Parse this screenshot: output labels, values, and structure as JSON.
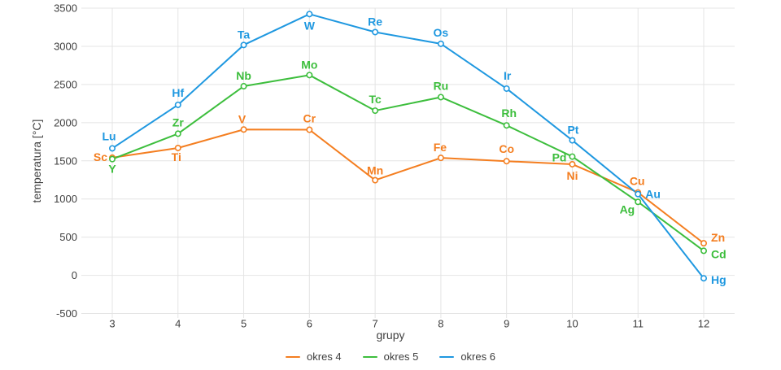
{
  "page": {
    "background": "#ffffff"
  },
  "chart_data": {
    "type": "line",
    "title": "",
    "xlabel": "grupy",
    "ylabel": "temperatura [°C]",
    "x_ticks": [
      3,
      4,
      5,
      6,
      7,
      8,
      9,
      10,
      11,
      12
    ],
    "y_ticks": [
      3500,
      3000,
      2500,
      2000,
      1500,
      1000,
      500,
      0,
      -500
    ],
    "xlim": [
      3,
      12
    ],
    "ylim": [
      -500,
      3500
    ],
    "grid": true,
    "legend_position": "bottom",
    "colors": {
      "grid": "#e4e4e4",
      "tick_text": "#3f3f3f",
      "axis_text": "#3f3f3f"
    },
    "series": [
      {
        "name": "okres 4",
        "color": "#f47e20",
        "points": [
          {
            "label": "Sc",
            "x": 3,
            "y": 1541,
            "anchor": "end",
            "dx": -6,
            "dy": 4
          },
          {
            "label": "Ti",
            "x": 4,
            "y": 1668,
            "anchor": "middle",
            "dx": -2,
            "dy": 16
          },
          {
            "label": "V",
            "x": 5,
            "y": 1910,
            "anchor": "middle",
            "dx": -2,
            "dy": -8
          },
          {
            "label": "Cr",
            "x": 6,
            "y": 1907,
            "anchor": "middle",
            "dx": 0,
            "dy": -9
          },
          {
            "label": "Mn",
            "x": 7,
            "y": 1246,
            "anchor": "middle",
            "dx": 0,
            "dy": -7
          },
          {
            "label": "Fe",
            "x": 8,
            "y": 1538,
            "anchor": "middle",
            "dx": -1,
            "dy": -8
          },
          {
            "label": "Co",
            "x": 9,
            "y": 1495,
            "anchor": "middle",
            "dx": 0,
            "dy": -10
          },
          {
            "label": "Ni",
            "x": 10,
            "y": 1455,
            "anchor": "middle",
            "dx": 0,
            "dy": 19
          },
          {
            "label": "Cu",
            "x": 11,
            "y": 1085,
            "anchor": "middle",
            "dx": -1,
            "dy": -9
          },
          {
            "label": "Zn",
            "x": 12,
            "y": 420,
            "anchor": "start",
            "dx": 9,
            "dy": -2
          }
        ]
      },
      {
        "name": "okres 5",
        "color": "#3dbe3d",
        "points": [
          {
            "label": "Y",
            "x": 3,
            "y": 1522,
            "anchor": "middle",
            "dx": 0,
            "dy": 17
          },
          {
            "label": "Zr",
            "x": 4,
            "y": 1855,
            "anchor": "middle",
            "dx": 0,
            "dy": -9
          },
          {
            "label": "Nb",
            "x": 5,
            "y": 2477,
            "anchor": "middle",
            "dx": 0,
            "dy": -8
          },
          {
            "label": "Mo",
            "x": 6,
            "y": 2623,
            "anchor": "middle",
            "dx": 0,
            "dy": -8
          },
          {
            "label": "Tc",
            "x": 7,
            "y": 2157,
            "anchor": "middle",
            "dx": 0,
            "dy": -9
          },
          {
            "label": "Ru",
            "x": 8,
            "y": 2334,
            "anchor": "middle",
            "dx": 0,
            "dy": -9
          },
          {
            "label": "Rh",
            "x": 9,
            "y": 1964,
            "anchor": "middle",
            "dx": 3,
            "dy": -10
          },
          {
            "label": "Pd",
            "x": 10,
            "y": 1555,
            "anchor": "end",
            "dx": -7,
            "dy": 6
          },
          {
            "label": "Ag",
            "x": 11,
            "y": 962,
            "anchor": "end",
            "dx": -4,
            "dy": 14
          },
          {
            "label": "Cd",
            "x": 12,
            "y": 321,
            "anchor": "start",
            "dx": 9,
            "dy": 9
          }
        ]
      },
      {
        "name": "okres 6",
        "color": "#1f98e0",
        "points": [
          {
            "label": "Lu",
            "x": 3,
            "y": 1663,
            "anchor": "middle",
            "dx": -4,
            "dy": -10
          },
          {
            "label": "Hf",
            "x": 4,
            "y": 2233,
            "anchor": "middle",
            "dx": 0,
            "dy": -10
          },
          {
            "label": "Ta",
            "x": 5,
            "y": 3017,
            "anchor": "middle",
            "dx": 0,
            "dy": -8
          },
          {
            "label": "W",
            "x": 6,
            "y": 3422,
            "anchor": "middle",
            "dx": 0,
            "dy": 19
          },
          {
            "label": "Re",
            "x": 7,
            "y": 3186,
            "anchor": "middle",
            "dx": 0,
            "dy": -8
          },
          {
            "label": "Os",
            "x": 8,
            "y": 3033,
            "anchor": "middle",
            "dx": 0,
            "dy": -9
          },
          {
            "label": "Ir",
            "x": 9,
            "y": 2446,
            "anchor": "middle",
            "dx": 1,
            "dy": -11
          },
          {
            "label": "Pt",
            "x": 10,
            "y": 1768,
            "anchor": "middle",
            "dx": 1,
            "dy": -8
          },
          {
            "label": "Au",
            "x": 11,
            "y": 1064,
            "anchor": "start",
            "dx": 9,
            "dy": 5
          },
          {
            "label": "Hg",
            "x": 12,
            "y": -39,
            "anchor": "start",
            "dx": 9,
            "dy": 7
          }
        ]
      }
    ]
  }
}
